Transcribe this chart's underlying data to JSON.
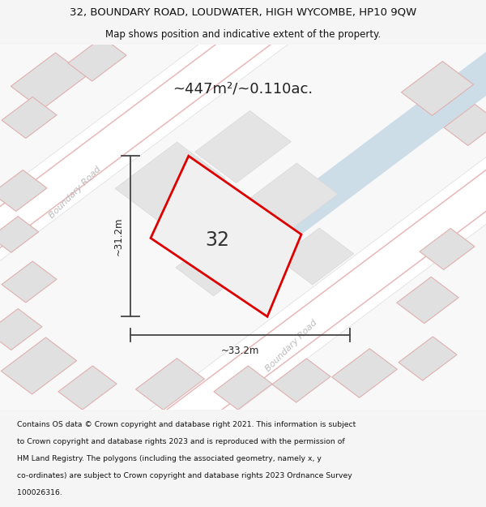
{
  "title_line1": "32, BOUNDARY ROAD, LOUDWATER, HIGH WYCOMBE, HP10 9QW",
  "title_line2": "Map shows position and indicative extent of the property.",
  "area_text": "~447m²/~0.110ac.",
  "property_number": "32",
  "dim_vertical": "~31.2m",
  "dim_horizontal": "~33.2m",
  "road_label_upper": "Boundary Road",
  "road_label_lower": "Boundary Road",
  "footer_lines": [
    "Contains OS data © Crown copyright and database right 2021. This information is subject",
    "to Crown copyright and database rights 2023 and is reproduced with the permission of",
    "HM Land Registry. The polygons (including the associated geometry, namely x, y",
    "co-ordinates) are subject to Crown copyright and database rights 2023 Ordnance Survey",
    "100026316."
  ],
  "bg_color": "#f5f5f5",
  "map_bg": "#f0f0f0",
  "road_color": "#ffffff",
  "road_line_color": "#e0b8b8",
  "blue_road_color": "#ccdde8",
  "block_color": "#e0e0e0",
  "block_edge_color": "#e0b0b0",
  "red_outline_color": "#dd0000",
  "dim_line_color": "#444444",
  "road_text_color": "#bbbbbb",
  "title_color": "#111111",
  "footer_color": "#111111"
}
